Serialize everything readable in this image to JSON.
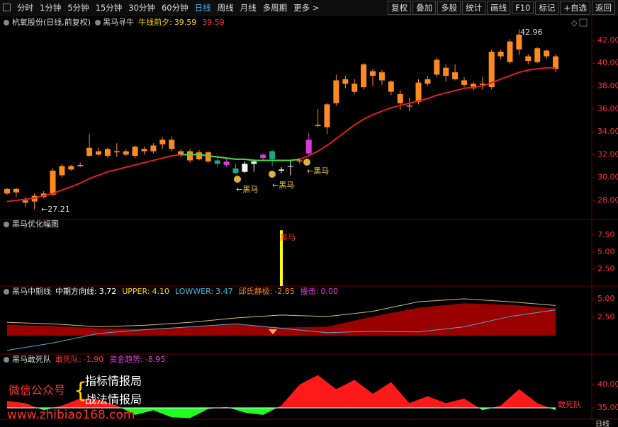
{
  "toolbar": {
    "left": [
      "分时",
      "1分钟",
      "5分钟",
      "15分钟",
      "30分钟",
      "60分钟",
      "日线",
      "周线",
      "月线",
      "多周期",
      "更多 >"
    ],
    "active": 6,
    "right": [
      "复权",
      "叠加",
      "多股",
      "统计",
      "画线",
      "F10",
      "标记",
      "+自选",
      "返回"
    ]
  },
  "chart_data": [
    {
      "type": "candlestick",
      "title": "杭氧股份(日线,前复权)",
      "indicator": "黑马寻牛",
      "legend": [
        {
          "label": "牛线前夕:",
          "value": "39.59",
          "color": "#ffd700"
        },
        {
          "value": "39.59",
          "color": "#ff3030"
        }
      ],
      "ylim": [
        26.45,
        44.04
      ],
      "yticks": [
        {
          "value": 28,
          "label": "28.00"
        },
        {
          "value": 30,
          "label": "30.00"
        },
        {
          "value": 32,
          "label": "32.00"
        },
        {
          "value": 34,
          "label": "34.00"
        },
        {
          "value": 36,
          "label": "36.00"
        },
        {
          "value": 38,
          "label": "38.00"
        },
        {
          "value": 40,
          "label": "40.00"
        },
        {
          "value": 42,
          "label": "42.00"
        }
      ],
      "candles": [
        [
          28.6,
          29.1,
          28.5,
          29.0
        ],
        [
          29.0,
          29.1,
          28.3,
          28.7
        ],
        [
          27.8,
          28.3,
          27.4,
          28.0
        ],
        [
          27.9,
          28.6,
          27.21,
          28.4
        ],
        [
          28.3,
          28.8,
          28.2,
          28.6
        ],
        [
          28.5,
          30.8,
          28.4,
          30.6
        ],
        [
          30.2,
          31.2,
          30.0,
          31.0
        ],
        [
          30.7,
          31.1,
          30.6,
          31.0
        ],
        [
          31.0,
          31.3,
          30.9,
          31.1
        ],
        [
          31.9,
          33.8,
          31.8,
          32.6
        ],
        [
          32.0,
          32.6,
          31.9,
          32.3
        ],
        [
          31.9,
          32.6,
          31.7,
          32.5
        ],
        [
          32.3,
          33.0,
          31.8,
          32.2
        ],
        [
          32.0,
          32.5,
          31.9,
          32.3
        ],
        [
          31.9,
          32.8,
          31.7,
          32.7
        ],
        [
          32.3,
          32.7,
          32.0,
          32.5
        ],
        [
          32.3,
          33.0,
          32.1,
          32.8
        ],
        [
          32.9,
          33.5,
          32.5,
          33.3
        ],
        [
          32.5,
          33.6,
          32.3,
          33.3
        ],
        [
          32.3,
          32.5,
          31.8,
          32.0
        ],
        [
          31.5,
          32.5,
          31.3,
          32.3
        ],
        [
          31.6,
          32.4,
          31.5,
          32.2
        ],
        [
          31.4,
          32.3,
          31.3,
          32.2
        ],
        [
          31.5,
          31.7,
          30.9,
          31.2
        ],
        [
          31.4,
          31.6,
          30.9,
          31.1
        ],
        [
          30.8,
          31.2,
          30.3,
          30.4
        ],
        [
          30.5,
          31.4,
          30.4,
          31.2
        ],
        [
          31.4,
          31.6,
          30.5,
          31.2
        ],
        [
          31.7,
          32.1,
          31.5,
          32.0
        ],
        [
          31.6,
          32.4,
          31.0,
          32.3
        ],
        [
          30.6,
          30.9,
          30.4,
          30.7
        ],
        [
          31.0,
          31.5,
          30.2,
          31.0
        ],
        [
          31.5,
          31.7,
          31.2,
          31.4
        ],
        [
          32.1,
          33.9,
          31.9,
          33.3
        ],
        [
          34.5,
          36.0,
          34.4,
          34.6
        ],
        [
          34.4,
          36.5,
          33.8,
          36.4
        ],
        [
          36.5,
          39.0,
          36.3,
          38.5
        ],
        [
          38.2,
          38.9,
          37.8,
          38.6
        ],
        [
          37.5,
          38.6,
          37.3,
          38.2
        ],
        [
          37.9,
          40.0,
          37.7,
          39.9
        ],
        [
          38.9,
          39.5,
          38.0,
          39.3
        ],
        [
          39.2,
          39.4,
          38.1,
          38.5
        ],
        [
          38.4,
          38.5,
          37.2,
          37.5
        ],
        [
          37.3,
          37.6,
          35.9,
          36.5
        ],
        [
          36.3,
          37.0,
          35.8,
          36.2
        ],
        [
          36.6,
          38.6,
          36.4,
          38.3
        ],
        [
          38.2,
          38.9,
          38.0,
          38.6
        ],
        [
          39.0,
          40.5,
          38.8,
          40.3
        ],
        [
          39.6,
          39.9,
          38.4,
          38.9
        ],
        [
          38.6,
          39.9,
          38.5,
          39.2
        ],
        [
          38.5,
          38.8,
          37.9,
          38.1
        ],
        [
          38.2,
          38.4,
          37.6,
          37.8
        ],
        [
          38.2,
          38.8,
          37.7,
          38.1
        ],
        [
          37.9,
          41.2,
          37.7,
          41.0
        ],
        [
          40.6,
          41.2,
          40.3,
          41.0
        ],
        [
          40.1,
          42.1,
          39.9,
          41.9
        ],
        [
          41.2,
          42.96,
          40.7,
          42.5
        ],
        [
          40.6,
          40.8,
          39.9,
          40.2
        ],
        [
          40.1,
          41.4,
          40.0,
          41.3
        ],
        [
          40.6,
          41.2,
          40.4,
          41.1
        ],
        [
          40.6,
          40.8,
          39.2,
          39.5
        ]
      ],
      "candle_colors": "oooooooooooooooooooooootmtwwmtwwomooooooooooooooooooooooooooo",
      "palette": {
        "o": "#ff8a1f",
        "t": "#1aa58c",
        "w": "#ffffff",
        "m": "#d63bd6"
      },
      "ma": {
        "color": "#e0201a",
        "values": [
          27.9,
          28.0,
          28.1,
          28.2,
          28.4,
          28.6,
          28.9,
          29.2,
          29.5,
          29.9,
          30.2,
          30.5,
          30.7,
          30.9,
          31.1,
          31.3,
          31.5,
          31.7,
          31.9,
          32.0,
          32.0,
          32.0,
          31.9,
          31.8,
          31.7,
          31.6,
          31.6,
          31.5,
          31.5,
          31.5,
          31.5,
          31.5,
          31.6,
          31.9,
          32.3,
          32.8,
          33.4,
          34.0,
          34.6,
          35.1,
          35.5,
          35.8,
          36.1,
          36.3,
          36.5,
          36.7,
          36.9,
          37.2,
          37.4,
          37.6,
          37.8,
          37.9,
          38.0,
          38.3,
          38.6,
          38.9,
          39.2,
          39.4,
          39.5,
          39.6,
          39.59
        ]
      },
      "ma_green": {
        "color": "#3ee03e",
        "values": [
          null,
          null,
          null,
          null,
          null,
          null,
          null,
          null,
          null,
          null,
          null,
          null,
          null,
          null,
          null,
          null,
          null,
          null,
          null,
          32.0,
          32.0,
          32.0,
          31.9,
          31.8,
          31.7,
          31.6,
          31.6,
          31.5,
          31.5,
          31.5,
          31.5,
          31.5,
          31.6,
          null,
          null,
          null,
          null,
          null,
          null,
          null,
          null,
          null,
          null,
          null,
          null,
          null,
          null,
          null,
          null,
          null,
          null,
          null,
          null,
          null,
          null,
          null,
          null,
          null,
          null,
          null,
          null
        ]
      },
      "annotations": [
        "←27.21",
        "42.96",
        "←黑马",
        "←黑马",
        "←黑马"
      ]
    },
    {
      "type": "bar",
      "title": "黑马优化幅图",
      "color": "#ffff00",
      "bar_label": "黑马",
      "ylim": [
        0,
        9.58
      ],
      "yticks": [
        {
          "value": 2.5,
          "label": "2.50"
        },
        {
          "value": 5,
          "label": "5.00"
        },
        {
          "value": 7.5,
          "label": "7.50"
        }
      ],
      "values": [
        0,
        0,
        0,
        0,
        0,
        0,
        0,
        0,
        0,
        0,
        0,
        0,
        0,
        0,
        0,
        0,
        0,
        0,
        0,
        0,
        0,
        0,
        0,
        0,
        0,
        0,
        0,
        0,
        0,
        0,
        8.2,
        0,
        0,
        0,
        0,
        0,
        0,
        0,
        0,
        0,
        0,
        0,
        0,
        0,
        0,
        0,
        0,
        0,
        0,
        0,
        0,
        0,
        0,
        0,
        0,
        0,
        0,
        0,
        0,
        0,
        0
      ]
    },
    {
      "type": "area",
      "title": "黑马中期线",
      "ylim": [
        -2.31,
        6.73
      ],
      "legend": [
        {
          "label": "中期方向线:",
          "value": "3.72",
          "color": "#ffffff"
        },
        {
          "label": "UPPER:",
          "value": "4.10",
          "color": "#ffd700"
        },
        {
          "label": "LOWWER:",
          "value": "3.47",
          "color": "#3fb8e0"
        },
        {
          "label": "邱氏静极:",
          "value": "-2.85",
          "color": "#ff8a1f"
        },
        {
          "label": "撞击:",
          "value": "0.00",
          "color": "#e040e0"
        }
      ],
      "yticks": [
        {
          "value": 2.5,
          "label": "2.50"
        },
        {
          "value": 5,
          "label": "5.00"
        }
      ],
      "area": {
        "color": "#9a0000",
        "values": [
          1.5,
          1.3,
          1.0,
          0.9,
          1.2,
          1.6,
          1.1,
          1.2,
          2.6,
          3.8,
          4.4,
          4.2,
          3.7
        ]
      },
      "lines": [
        {
          "color": "#d8c060",
          "values": [
            1.8,
            1.6,
            1.2,
            1.4,
            1.8,
            2.4,
            2.8,
            2.6,
            3.3,
            4.6,
            5.0,
            4.6,
            4.1
          ]
        },
        {
          "color": "#58a8c8",
          "values": [
            -2.0,
            -1.0,
            0.3,
            0.8,
            1.2,
            1.6,
            1.0,
            0.4,
            0.6,
            0.5,
            1.2,
            2.6,
            3.5
          ]
        }
      ]
    },
    {
      "type": "split-area",
      "title": "黑马敢死队",
      "ylim": [
        32.58,
        46.2
      ],
      "baseline": 35,
      "up_color": "#ff1a1a",
      "down_color": "#22ff22",
      "end_label": "敢死队",
      "legend": [
        {
          "label": "敢死队:",
          "value": "-1.90",
          "color": "#ff3030"
        },
        {
          "label": "资金趋势:",
          "value": "-8.95",
          "color": "#e040e0"
        }
      ],
      "yticks": [
        {
          "value": 35,
          "label": "35.00"
        },
        {
          "value": 40,
          "label": "40.00"
        }
      ],
      "values": [
        36.5,
        36,
        34.5,
        35.5,
        37,
        36.8,
        35.5,
        33.5,
        34.5,
        33,
        32.8,
        34.8,
        35.2,
        34,
        33.5,
        35.5,
        40,
        42,
        39,
        41,
        38,
        40.5,
        36,
        37.5,
        36,
        37,
        34.5,
        35.5,
        39,
        36,
        34.5
      ]
    }
  ],
  "watermark": {
    "line1": "微信公众号",
    "brand1": "指标情报局",
    "brand2": "战法情报局",
    "url": "www.zhibiao168.com"
  },
  "footer": "日线"
}
